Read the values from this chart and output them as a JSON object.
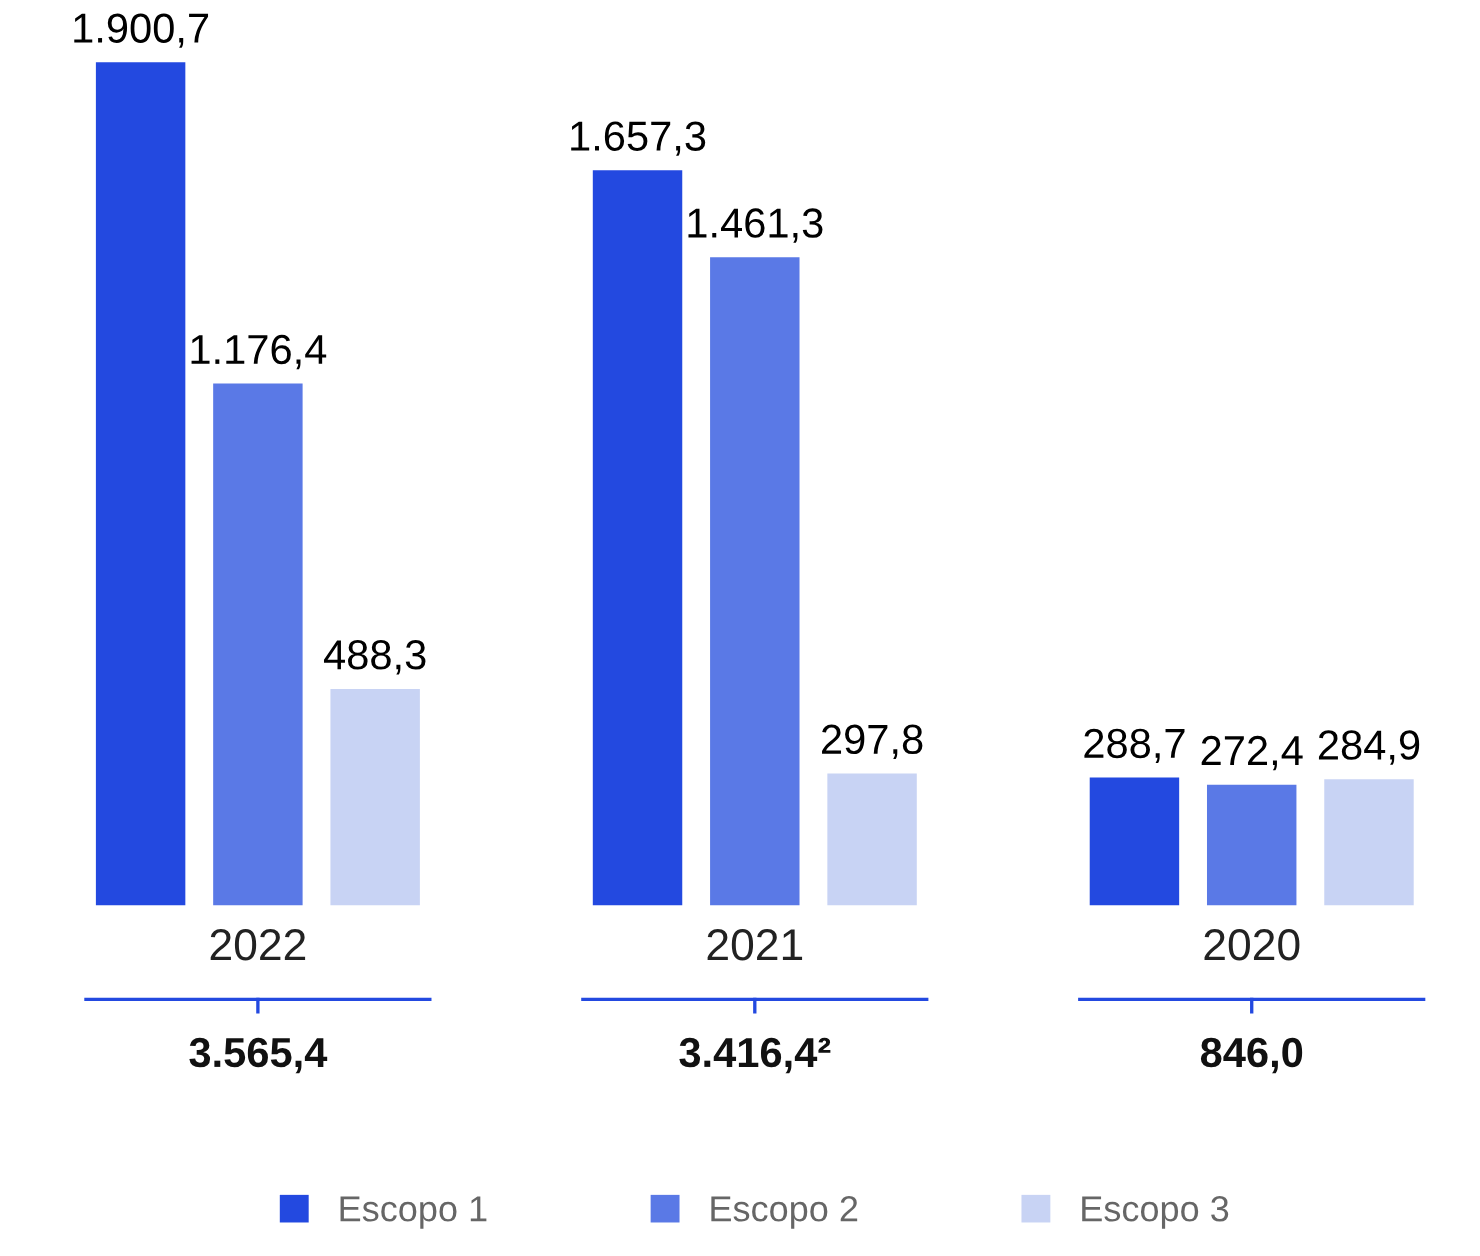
{
  "chart_data": {
    "type": "bar",
    "categories": [
      "2022",
      "2021",
      "2020"
    ],
    "series": [
      {
        "name": "Escopo 1",
        "color": "#2349e0",
        "values": [
          1900.7,
          1657.3,
          288.7
        ],
        "value_labels": [
          "1.900,7",
          "1.657,3",
          "288,7"
        ]
      },
      {
        "name": "Escopo 2",
        "color": "#5a79e6",
        "values": [
          1176.4,
          1461.3,
          272.4
        ],
        "value_labels": [
          "1.176,4",
          "1.461,3",
          "272,4"
        ]
      },
      {
        "name": "Escopo 3",
        "color": "#c8d3f4",
        "values": [
          488.3,
          297.8,
          284.9
        ],
        "value_labels": [
          "488,3",
          "297,8",
          "284,9"
        ]
      }
    ],
    "totals": [
      "3.565,4",
      "3.416,4²",
      "846,0"
    ],
    "legend": "bottom",
    "grid": false
  }
}
